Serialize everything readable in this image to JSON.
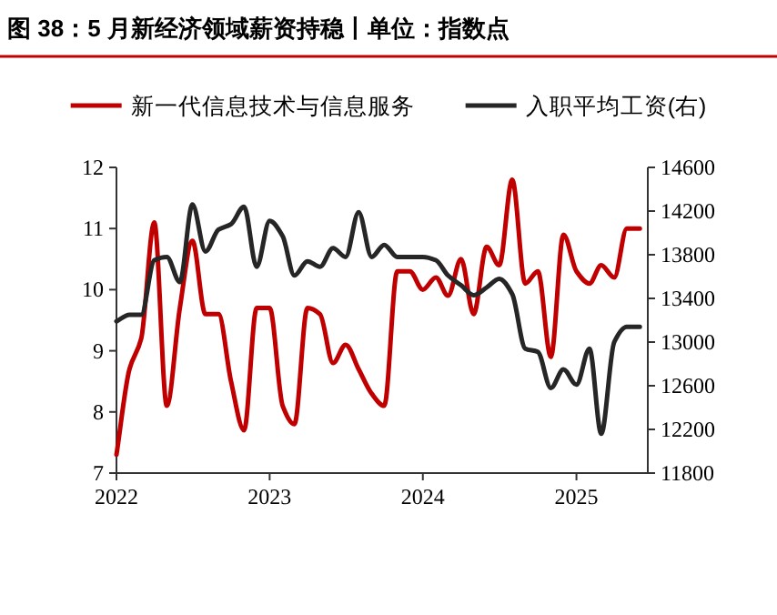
{
  "chart_data": {
    "type": "line",
    "title": "图 38：5 月新经济领域薪资持稳丨单位：指数点",
    "xlim": [
      "2022-01-01",
      "2025-06-20"
    ],
    "xticks": [
      "2022",
      "2023",
      "2024",
      "2025"
    ],
    "ylim": [
      7,
      12
    ],
    "yticks": [
      7,
      8,
      9,
      10,
      11,
      12
    ],
    "y2lim": [
      11800,
      14600
    ],
    "y2ticks": [
      11800,
      12200,
      12600,
      13000,
      13400,
      13800,
      14200,
      14600
    ],
    "grid": false,
    "legend": "top",
    "line_style": "solid",
    "marker": "none",
    "x": [
      "2022-01",
      "2022-02",
      "2022-03",
      "2022-04",
      "2022-05",
      "2022-06",
      "2022-07",
      "2022-08",
      "2022-09",
      "2022-10",
      "2022-11",
      "2022-12",
      "2023-01",
      "2023-02",
      "2023-03",
      "2023-04",
      "2023-05",
      "2023-06",
      "2023-07",
      "2023-08",
      "2023-09",
      "2023-10",
      "2023-11",
      "2023-12",
      "2024-01",
      "2024-02",
      "2024-03",
      "2024-04",
      "2024-05",
      "2024-06",
      "2024-07",
      "2024-08",
      "2024-09",
      "2024-10",
      "2024-11",
      "2024-12",
      "2025-01",
      "2025-02",
      "2025-03",
      "2025-04",
      "2025-05",
      "2025-06"
    ],
    "series": [
      {
        "name": "新一代信息技术与信息服务",
        "color": "#c00000",
        "values": [
          7.3,
          8.7,
          9.2,
          11.1,
          8.1,
          9.7,
          10.8,
          9.6,
          9.6,
          8.5,
          7.7,
          9.7,
          9.7,
          8.1,
          7.8,
          9.7,
          9.6,
          8.8,
          9.1,
          8.7,
          8.3,
          8.1,
          10.3,
          10.3,
          10.0,
          10.2,
          9.9,
          10.5,
          9.6,
          10.7,
          10.4,
          11.8,
          10.1,
          10.3,
          8.9,
          10.9,
          10.3,
          10.1,
          10.4,
          10.2,
          11.0,
          11.0
        ]
      },
      {
        "name": "入职平均工资(右)",
        "color": "#262626",
        "axis": "y2",
        "values": [
          13190,
          13250,
          13250,
          13750,
          13780,
          13550,
          14260,
          13830,
          14030,
          14080,
          14240,
          13690,
          14110,
          13970,
          13610,
          13740,
          13690,
          13860,
          13780,
          14190,
          13780,
          13890,
          13780,
          13780,
          13780,
          13750,
          13610,
          13520,
          13430,
          13500,
          13580,
          13440,
          12940,
          12910,
          12580,
          12750,
          12610,
          12940,
          12160,
          13000,
          13140,
          13140
        ]
      }
    ]
  }
}
